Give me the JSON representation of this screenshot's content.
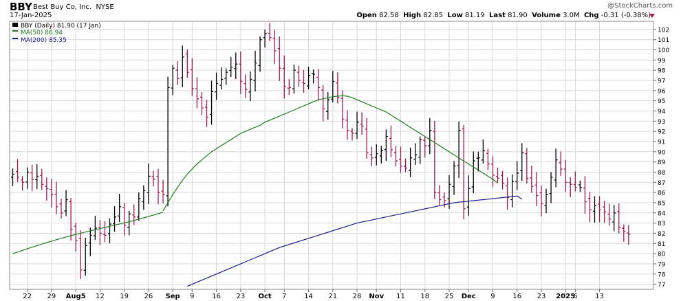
{
  "header": {
    "symbol": "BBY",
    "company": "Best Buy Co, Inc.",
    "exchange": "NYSE",
    "date": "17-Jan-2025",
    "watermark": "@StockCharts.com",
    "open_label": "Open",
    "open": "82.58",
    "high_label": "High",
    "high": "82.85",
    "low_label": "Low",
    "low": "81.19",
    "last_label": "Last",
    "last": "81.90",
    "volume_label": "Volume",
    "volume": "3.0M",
    "chg_label": "Chg",
    "chg": "-0.31 (-0.38%)"
  },
  "legend": {
    "price": "BBY (Daily) 81.90 (17 Jan)",
    "ma50": "MA(50) 86.94",
    "ma200": "MA(200) 85.35"
  },
  "colors": {
    "up": "#000000",
    "down": "#9c1b4e",
    "ma50": "#1e7b1e",
    "ma200": "#1a1a8c",
    "grid": "#d9d9d9"
  },
  "chart_data": {
    "type": "ohlc",
    "title": "BBY (Daily)",
    "ylim": [
      76.5,
      102.8
    ],
    "yticks": [
      77,
      78,
      79,
      80,
      81,
      82,
      83,
      84,
      85,
      86,
      87,
      88,
      89,
      90,
      91,
      92,
      93,
      94,
      95,
      96,
      97,
      98,
      99,
      100,
      101,
      102
    ],
    "xlabels": [
      {
        "i": 3,
        "label": "22"
      },
      {
        "i": 8,
        "label": "29"
      },
      {
        "i": 13,
        "label": "Aug5"
      },
      {
        "i": 18,
        "label": "12"
      },
      {
        "i": 23,
        "label": "19"
      },
      {
        "i": 28,
        "label": "26"
      },
      {
        "i": 33,
        "label": "Sep"
      },
      {
        "i": 37,
        "label": "9"
      },
      {
        "i": 42,
        "label": "16"
      },
      {
        "i": 47,
        "label": "23"
      },
      {
        "i": 52,
        "label": "Oct"
      },
      {
        "i": 56,
        "label": "7"
      },
      {
        "i": 61,
        "label": "14"
      },
      {
        "i": 66,
        "label": "21"
      },
      {
        "i": 71,
        "label": "28"
      },
      {
        "i": 75,
        "label": "Nov"
      },
      {
        "i": 80,
        "label": "11"
      },
      {
        "i": 85,
        "label": "18"
      },
      {
        "i": 90,
        "label": "25"
      },
      {
        "i": 94,
        "label": "Dec"
      },
      {
        "i": 99,
        "label": "9"
      },
      {
        "i": 104,
        "label": "16"
      },
      {
        "i": 109,
        "label": "23"
      },
      {
        "i": 114,
        "label": "2025"
      },
      {
        "i": 116,
        "label": "6"
      },
      {
        "i": 121,
        "label": "13"
      }
    ],
    "close": [
      87.8,
      87.5,
      87.0,
      88.0,
      87.3,
      87.6,
      86.8,
      86.4,
      85.8,
      84.6,
      84.0,
      85.3,
      82.4,
      81.3,
      78.4,
      80.8,
      81.8,
      82.5,
      82.0,
      81.8,
      82.9,
      83.6,
      84.6,
      82.8,
      83.9,
      83.6,
      85.4,
      86.2,
      87.6,
      87.3,
      86.0,
      85.8,
      96.3,
      98.2,
      97.2,
      99.3,
      97.8,
      96.2,
      95.2,
      94.3,
      93.4,
      95.9,
      96.7,
      97.1,
      97.8,
      98.3,
      98.6,
      96.9,
      96.1,
      97.1,
      98.7,
      101.0,
      101.6,
      101.2,
      99.9,
      98.2,
      96.4,
      96.3,
      98.0,
      97.0,
      96.7,
      97.5,
      97.6,
      96.3,
      94.2,
      95.1,
      96.9,
      95.3,
      93.2,
      92.1,
      91.8,
      92.9,
      92.5,
      89.9,
      89.4,
      89.8,
      90.1,
      91.5,
      90.2,
      89.1,
      88.6,
      88.4,
      89.4,
      89.7,
      91.2,
      90.6,
      92.1,
      86.0,
      85.3,
      85.2,
      86.8,
      88.6,
      92.1,
      84.4,
      86.4,
      89.1,
      89.4,
      90.1,
      88.8,
      87.7,
      87.4,
      86.9,
      85.5,
      87.1,
      87.9,
      89.9,
      87.4,
      86.6,
      85.7,
      84.9,
      85.8,
      87.5,
      89.2,
      88.3,
      87.0,
      86.8,
      86.5,
      86.5,
      85.1,
      84.3,
      84.7,
      84.3,
      84.1,
      83.4,
      84.0,
      82.6,
      82.2,
      81.9
    ],
    "ma50_start": 31,
    "ma50": [
      84.2,
      85.0,
      85.8,
      86.5,
      87.2,
      87.8,
      88.3,
      88.8,
      89.2,
      89.6,
      90.0,
      90.3,
      90.6,
      90.9,
      91.2,
      91.5,
      91.8,
      92.0,
      92.2,
      92.4,
      92.6,
      92.9,
      93.1,
      93.3,
      93.5,
      93.7,
      93.9,
      94.1,
      94.3,
      94.5,
      94.7,
      94.9,
      95.1,
      95.2,
      95.3,
      95.4,
      95.45,
      95.5,
      95.45,
      95.3,
      95.1,
      94.9,
      94.7,
      94.5,
      94.3,
      94.1,
      93.9,
      93.6,
      93.3,
      93.0,
      92.7,
      92.4,
      92.1,
      91.8,
      91.5,
      91.2,
      90.9,
      90.6,
      90.3,
      90.0,
      89.7,
      89.4,
      89.1,
      88.8,
      88.5,
      88.2,
      87.9,
      87.6,
      87.3,
      86.94
    ],
    "ma200_start": 36,
    "ma200": [
      76.8,
      77.0,
      77.2,
      77.4,
      77.6,
      77.8,
      78.0,
      78.2,
      78.4,
      78.6,
      78.8,
      79.0,
      79.2,
      79.4,
      79.6,
      79.8,
      80.0,
      80.2,
      80.4,
      80.6,
      80.75,
      80.9,
      81.05,
      81.2,
      81.35,
      81.5,
      81.65,
      81.8,
      81.95,
      82.1,
      82.25,
      82.4,
      82.55,
      82.7,
      82.85,
      83.0,
      83.1,
      83.2,
      83.3,
      83.4,
      83.5,
      83.6,
      83.7,
      83.8,
      83.9,
      84.0,
      84.1,
      84.2,
      84.3,
      84.4,
      84.5,
      84.6,
      84.7,
      84.8,
      84.9,
      85.0,
      85.05,
      85.1,
      85.15,
      85.2,
      85.25,
      85.3,
      85.35,
      85.4,
      85.45,
      85.5,
      85.55,
      85.6,
      85.65,
      85.35
    ],
    "legend_position": "top-left",
    "grid": true
  }
}
